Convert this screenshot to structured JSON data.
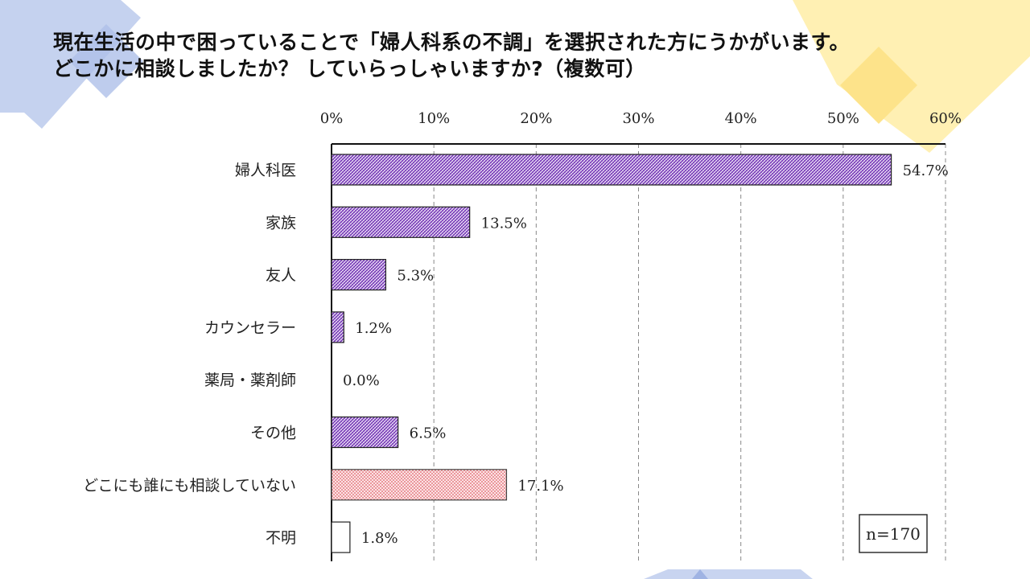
{
  "title_lines": [
    "現在生活の中で困っていることで「婦人科系の不調」を選択された方にうかがいます。",
    "どこかに相談しましたか？ していらっしゃいますか?（複数可）"
  ],
  "colors": {
    "bar_purple": "#7a3fb8",
    "bar_red": "#e0606a",
    "deco_blue": "#b7c6ea",
    "deco_yellow": "#fde89a"
  },
  "chart_data": {
    "type": "bar",
    "orientation": "horizontal",
    "categories": [
      "婦人科医",
      "家族",
      "友人",
      "カウンセラー",
      "薬局・薬剤師",
      "その他",
      "どこにも誰にも相談していない",
      "不明"
    ],
    "values": [
      54.7,
      13.5,
      5.3,
      1.2,
      0.0,
      6.5,
      17.1,
      1.8
    ],
    "value_labels": [
      "54.7%",
      "13.5%",
      "5.3%",
      "1.2%",
      "0.0%",
      "6.5%",
      "17.1%",
      "1.8%"
    ],
    "fills": [
      "purple-hatch",
      "purple-hatch",
      "purple-hatch",
      "purple-hatch",
      "purple-hatch",
      "purple-hatch",
      "red-dots",
      "white"
    ],
    "xlim": [
      0,
      60
    ],
    "ticks": [
      0,
      10,
      20,
      30,
      40,
      50,
      60
    ],
    "tick_labels": [
      "0%",
      "10%",
      "20%",
      "30%",
      "40%",
      "50%",
      "60%"
    ],
    "axis_position": "top",
    "grid": "dashed-vertical",
    "note": "n=170"
  }
}
